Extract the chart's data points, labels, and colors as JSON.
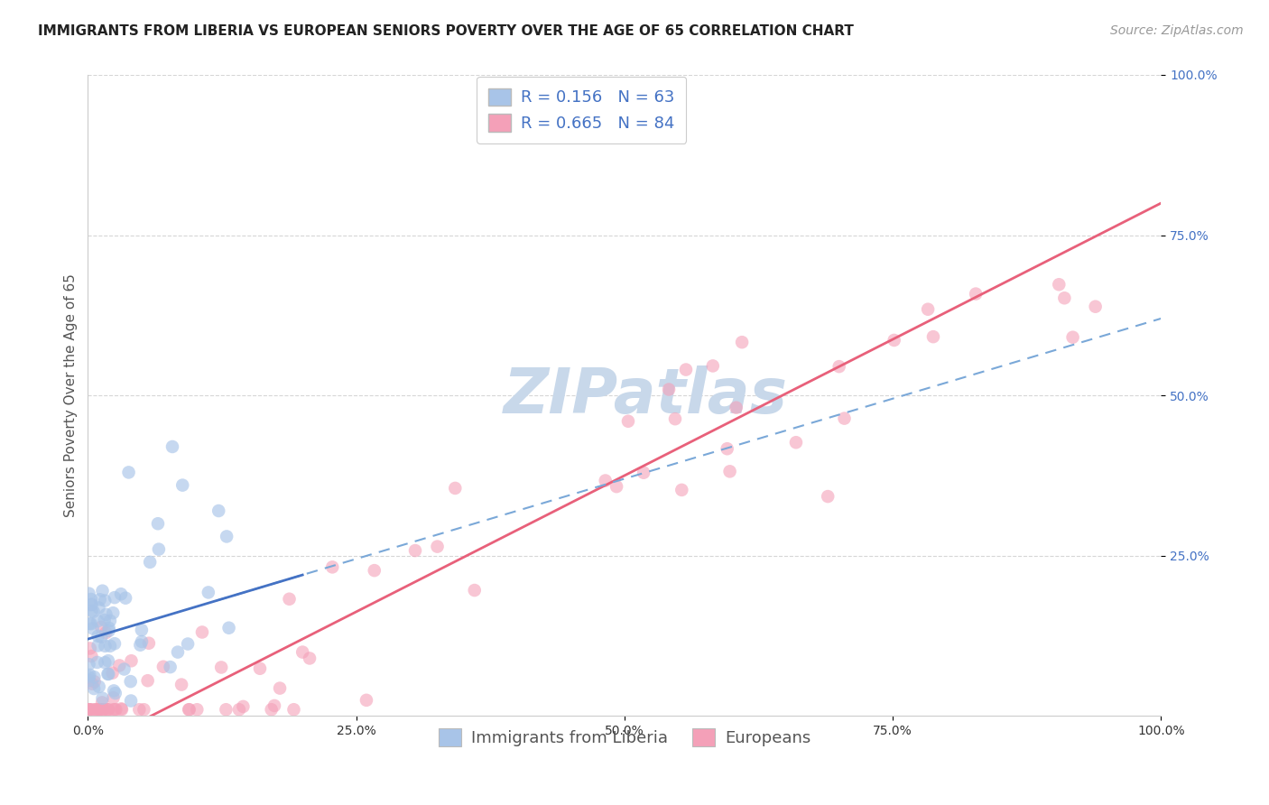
{
  "title": "IMMIGRANTS FROM LIBERIA VS EUROPEAN SENIORS POVERTY OVER THE AGE OF 65 CORRELATION CHART",
  "source": "Source: ZipAtlas.com",
  "ylabel": "Seniors Poverty Over the Age of 65",
  "xlabel": "",
  "xlim": [
    0,
    1.0
  ],
  "ylim": [
    0,
    1.0
  ],
  "xticks": [
    0.0,
    0.25,
    0.5,
    0.75,
    1.0
  ],
  "xticklabels": [
    "0.0%",
    "25.0%",
    "50.0%",
    "75.0%",
    "100.0%"
  ],
  "yticks": [
    0.25,
    0.5,
    0.75,
    1.0
  ],
  "yticklabels": [
    "25.0%",
    "50.0%",
    "75.0%",
    "100.0%"
  ],
  "liberia_R": 0.156,
  "liberia_N": 63,
  "european_R": 0.665,
  "european_N": 84,
  "liberia_color": "#a8c4e8",
  "european_color": "#f4a0b8",
  "liberia_line_color": "#4472c4",
  "european_line_color": "#e8607a",
  "liberia_line_style": "solid",
  "european_line_style": "solid",
  "liberia_dash_color": "#7aa8d8",
  "legend_text_color": "#4472c4",
  "watermark_color": "#c8d8ea",
  "background_color": "#ffffff",
  "grid_color": "#cccccc",
  "title_fontsize": 11,
  "axis_label_fontsize": 11,
  "tick_fontsize": 10,
  "legend_fontsize": 13,
  "source_fontsize": 10
}
